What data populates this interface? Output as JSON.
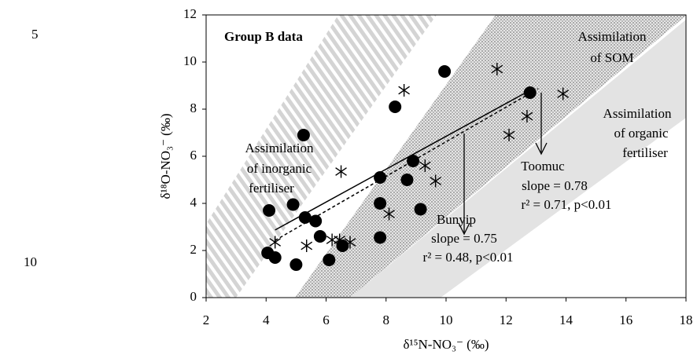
{
  "line_numbers": [
    "5",
    "10"
  ],
  "chart_data": {
    "type": "scatter",
    "xlabel": "δ¹⁵N-NO₃⁻ (‰)",
    "ylabel": "δ¹⁸O-NO₃⁻ (‰)",
    "xlim": [
      2,
      18
    ],
    "xticks": [
      2,
      4,
      6,
      8,
      10,
      12,
      14,
      16,
      18
    ],
    "ylim": [
      0,
      12
    ],
    "yticks": [
      0,
      2,
      4,
      6,
      8,
      10,
      12
    ],
    "grid": false,
    "series": [
      {
        "marker": "circle",
        "color": "#000000",
        "x": [
          4.05,
          4.1,
          4.3,
          4.9,
          5.0,
          5.25,
          5.3,
          5.65,
          5.8,
          6.1,
          6.55,
          7.8,
          7.8,
          7.8,
          8.3,
          8.7,
          8.9,
          9.15,
          9.95,
          12.8
        ],
        "values": [
          1.9,
          3.7,
          1.7,
          3.95,
          1.4,
          6.9,
          3.4,
          3.25,
          2.6,
          1.6,
          2.2,
          5.1,
          4.0,
          2.55,
          8.1,
          5.0,
          5.8,
          3.75,
          9.6,
          8.7
        ]
      },
      {
        "marker": "asterisk",
        "color": "#000000",
        "x": [
          4.3,
          5.35,
          6.2,
          6.45,
          6.5,
          6.8,
          8.1,
          8.6,
          9.3,
          9.65,
          11.7,
          12.1,
          12.7,
          13.9
        ],
        "values": [
          2.35,
          2.2,
          2.45,
          2.45,
          5.35,
          2.35,
          3.55,
          8.8,
          5.6,
          4.95,
          9.7,
          6.9,
          7.7,
          8.65
        ]
      }
    ],
    "fit_lines": [
      {
        "style": "solid",
        "x": [
          4.3,
          12.7
        ],
        "values": [
          2.87,
          8.73
        ]
      },
      {
        "style": "dashed",
        "x": [
          4.3,
          13.07
        ],
        "values": [
          2.43,
          8.87
        ]
      }
    ],
    "annotations": {
      "group": "Group B data",
      "som": [
        "Assimilation",
        "of SOM"
      ],
      "inorganic": [
        "Assimilation",
        "of inorganic",
        "fertiliser"
      ],
      "organic": [
        "Assimilation",
        "of organic",
        "fertiliser"
      ],
      "toomuc": [
        "Toomuc",
        "slope = 0.78",
        "r² = 0.71, p<0.01"
      ],
      "bunyip": [
        "Bunyip",
        "slope = 0.75",
        "r² = 0.48, p<0.01"
      ]
    }
  }
}
